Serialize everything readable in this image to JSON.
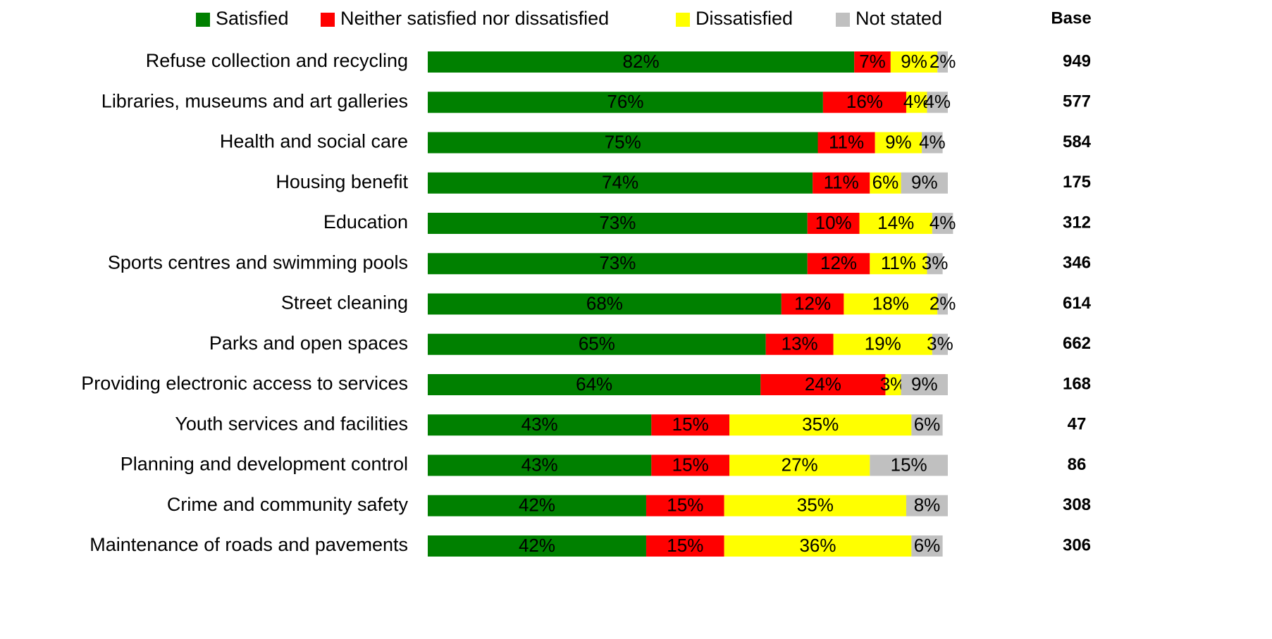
{
  "chart_data": {
    "type": "stacked-barh",
    "categories": [
      "Refuse collection and recycling",
      "Libraries, museums and art galleries",
      "Health and social care",
      "Housing benefit",
      "Education",
      "Sports centres and swimming pools",
      "Street cleaning",
      "Parks and open spaces",
      "Providing electronic access to services",
      "Youth services and facilities",
      "Planning and development control",
      "Crime and community safety",
      "Maintenance of roads and pavements"
    ],
    "series": [
      {
        "name": "Satisfied",
        "color": "#008000",
        "values": [
          82,
          76,
          75,
          74,
          73,
          73,
          68,
          65,
          64,
          43,
          43,
          42,
          42
        ],
        "value_labels": [
          "82%",
          "76%",
          "75%",
          "74%",
          "73%",
          "73%",
          "68%",
          "65%",
          "64%",
          "43%",
          "43%",
          "42%",
          "42%"
        ]
      },
      {
        "name": "Neither satisfied nor dissatisfied",
        "color": "#ff0000",
        "values": [
          7,
          16,
          11,
          11,
          10,
          12,
          12,
          13,
          24,
          15,
          15,
          15,
          15
        ],
        "value_labels": [
          "7%",
          "16%",
          "11%",
          "11%",
          "10%",
          "12%",
          "12%",
          "13%",
          "24%",
          "15%",
          "15%",
          "15%",
          "15%"
        ]
      },
      {
        "name": "Dissatisfied",
        "color": "#ffff00",
        "values": [
          9,
          4,
          9,
          6,
          14,
          11,
          18,
          19,
          3,
          35,
          27,
          35,
          36
        ],
        "value_labels": [
          "9%",
          "4%",
          "9%",
          "6%",
          "14%",
          "11%",
          "18%",
          "19%",
          "3%",
          "35%",
          "27%",
          "35%",
          "36%"
        ]
      },
      {
        "name": "Not stated",
        "color": "#c0c0c0",
        "values": [
          2,
          4,
          4,
          9,
          4,
          3,
          2,
          3,
          9,
          6,
          15,
          8,
          6
        ],
        "value_labels": [
          "2%",
          "4%",
          "4%",
          "9%",
          "4%",
          "3%",
          "2%",
          "3%",
          "9%",
          "6%",
          "15%",
          "8%",
          "6%"
        ]
      }
    ],
    "xlim": [
      0,
      100
    ],
    "legend": "top",
    "base_title": "Base",
    "base_values": [
      949,
      577,
      584,
      175,
      312,
      346,
      614,
      662,
      168,
      47,
      86,
      308,
      306
    ]
  }
}
